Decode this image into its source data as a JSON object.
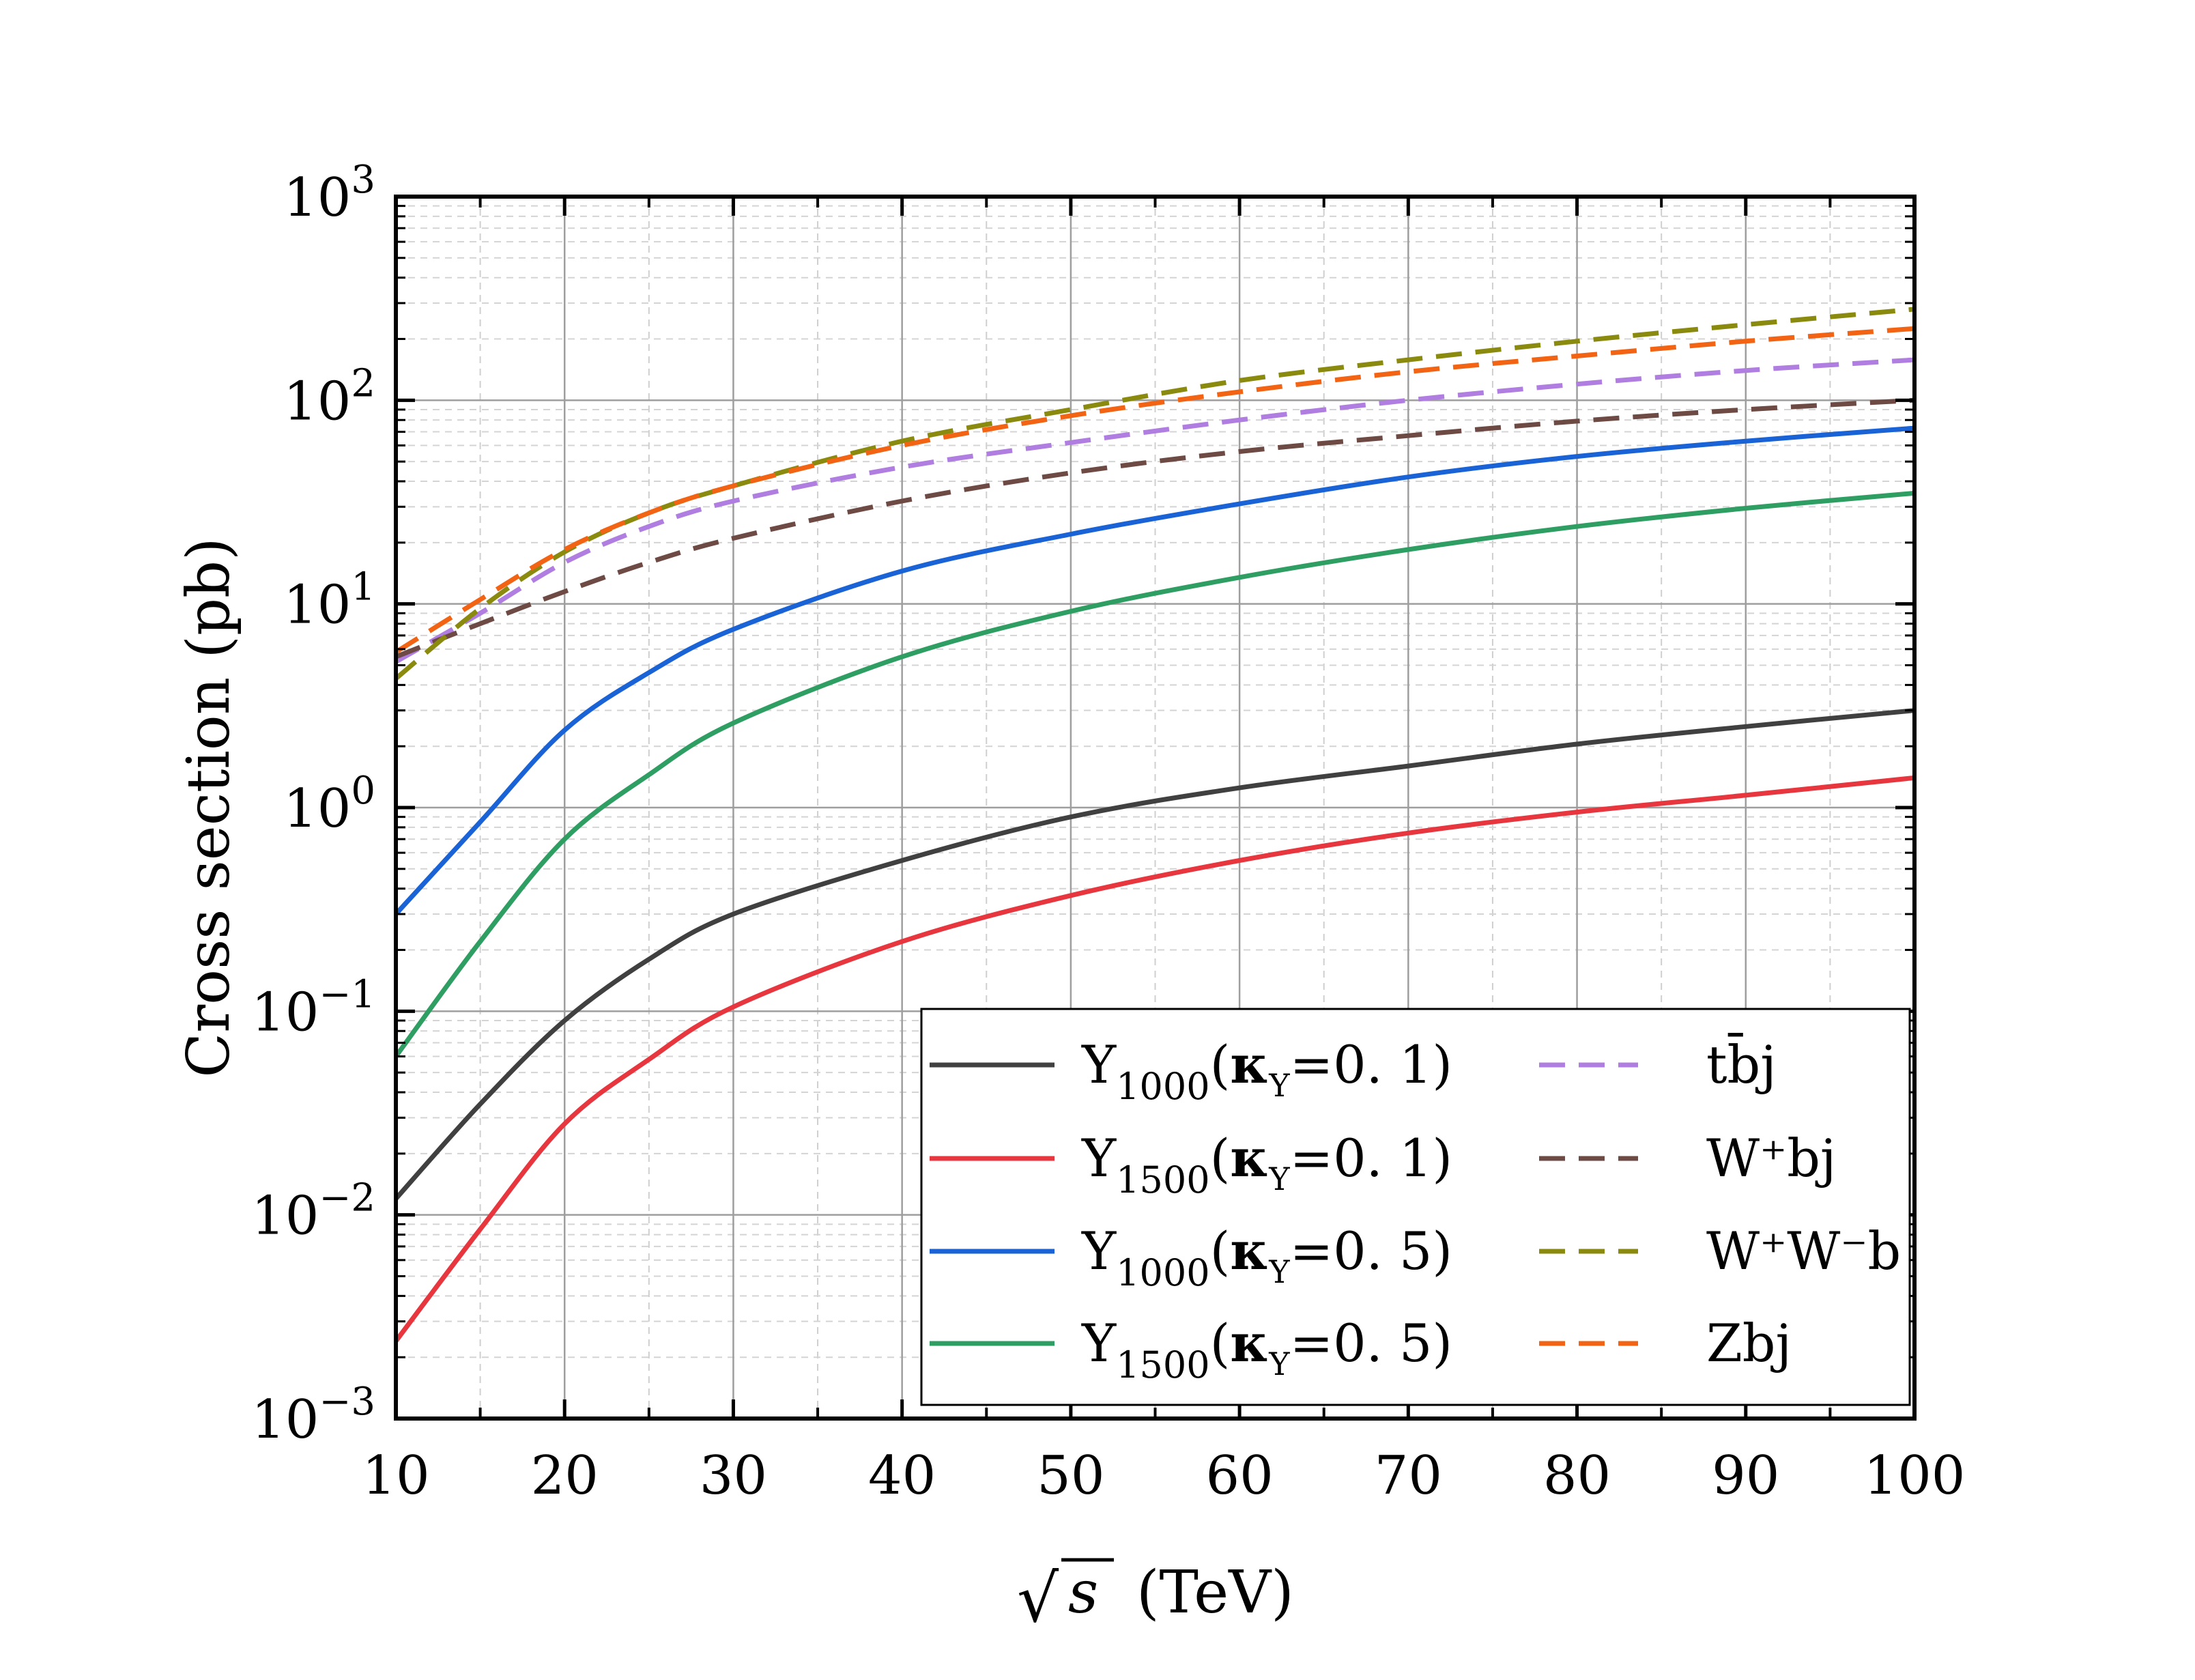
{
  "chart_data": {
    "type": "line",
    "title": "",
    "xlabel_root": "√",
    "xlabel_var": "s",
    "xlabel_unit": "(TeV)",
    "ylabel": "Cross section (pb)",
    "xlim": [
      10,
      100
    ],
    "ylim_log10": [
      -3,
      3
    ],
    "yscale": "log",
    "grid": true,
    "legend_position": "lower-right",
    "x_ticks": [
      "10",
      "20",
      "30",
      "40",
      "50",
      "60",
      "70",
      "80",
      "90",
      "100"
    ],
    "y_ticks": [
      {
        "base": "10",
        "exp": "−3"
      },
      {
        "base": "10",
        "exp": "−2"
      },
      {
        "base": "10",
        "exp": "−1"
      },
      {
        "base": "10",
        "exp": "0"
      },
      {
        "base": "10",
        "exp": "1"
      },
      {
        "base": "10",
        "exp": "2"
      },
      {
        "base": "10",
        "exp": "3"
      }
    ],
    "x": [
      10,
      15,
      20,
      25,
      30,
      40,
      50,
      60,
      70,
      80,
      90,
      100
    ],
    "series": [
      {
        "name": "Y1000(κY=0.1)",
        "label_main": "Y",
        "label_sub": "1000",
        "label_kappa": "κ",
        "label_ksub": "Y",
        "label_rest": "=0. 1)",
        "color": "#404040",
        "dash": "solid",
        "values": [
          0.012,
          0.035,
          0.09,
          0.18,
          0.3,
          0.55,
          0.9,
          1.25,
          1.6,
          2.05,
          2.5,
          3.0
        ]
      },
      {
        "name": "Y1500(κY=0.1)",
        "label_main": "Y",
        "label_sub": "1500",
        "label_kappa": "κ",
        "label_ksub": "Y",
        "label_rest": "=0. 1)",
        "color": "#e8363f",
        "dash": "solid",
        "values": [
          0.0024,
          0.0085,
          0.028,
          0.058,
          0.105,
          0.22,
          0.37,
          0.55,
          0.75,
          0.95,
          1.15,
          1.4
        ]
      },
      {
        "name": "Y1000(κY=0.5)",
        "label_main": "Y",
        "label_sub": "1000",
        "label_kappa": "κ",
        "label_ksub": "Y",
        "label_rest": "=0. 5)",
        "color": "#1a63d6",
        "dash": "solid",
        "values": [
          0.3,
          0.85,
          2.4,
          4.6,
          7.5,
          14.5,
          22,
          31,
          42,
          53,
          63,
          73
        ]
      },
      {
        "name": "Y1500(κY=0.5)",
        "label_main": "Y",
        "label_sub": "1500",
        "label_kappa": "κ",
        "label_ksub": "Y",
        "label_rest": "=0. 5)",
        "color": "#2f9e63",
        "dash": "solid",
        "values": [
          0.06,
          0.22,
          0.7,
          1.45,
          2.6,
          5.5,
          9.2,
          13.5,
          18.5,
          24,
          29.5,
          35
        ]
      },
      {
        "name": "tb̄j",
        "label_main": "tb̄j",
        "color": "#b07de0",
        "dash": "dashed",
        "values": [
          5.2,
          9.0,
          16.0,
          24,
          32,
          47,
          62,
          80,
          100,
          120,
          140,
          158
        ]
      },
      {
        "name": "W+bj",
        "label_main": "W⁺bj",
        "color": "#6e4a44",
        "dash": "dashed",
        "values": [
          5.5,
          8.0,
          11.5,
          16,
          21,
          32,
          44,
          56,
          67,
          79,
          90,
          100
        ]
      },
      {
        "name": "W+W-b",
        "label_main": "W⁺W⁻b",
        "color": "#8a8a0e",
        "dash": "dashed",
        "values": [
          4.3,
          9.5,
          18,
          28,
          38,
          63,
          90,
          125,
          158,
          195,
          235,
          280
        ]
      },
      {
        "name": "Zbj",
        "label_main": "Zbj",
        "color": "#f26414",
        "dash": "dashed",
        "values": [
          5.8,
          10.5,
          18.5,
          28,
          38,
          60,
          84,
          110,
          138,
          165,
          195,
          225
        ]
      }
    ]
  }
}
